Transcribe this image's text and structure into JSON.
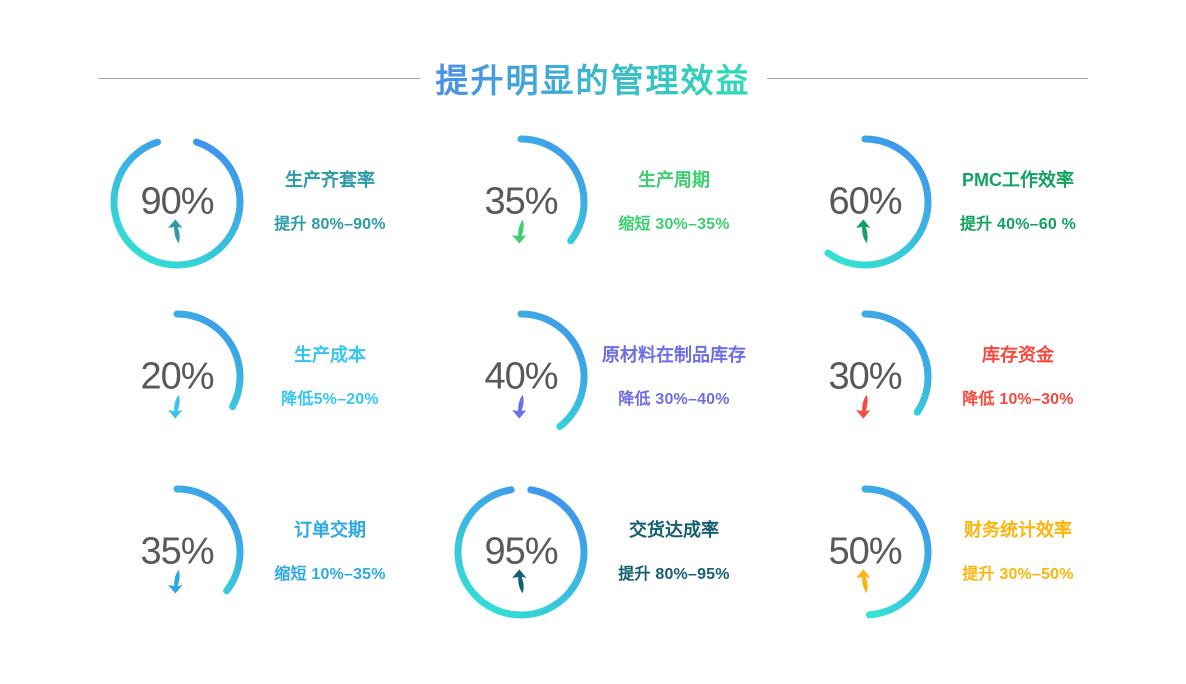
{
  "header": {
    "title": "提升明显的管理效益",
    "title_gradient": [
      "#4A8FE8",
      "#2EDCB4"
    ],
    "divider_color": "#A6A6A6"
  },
  "chart_data": {
    "type": "gauge",
    "layout": "3x3-grid",
    "unit": "%",
    "value_color": "#58595B",
    "arc_gradient": [
      "#3F92ED",
      "#33E1D4"
    ],
    "items": [
      {
        "value": 90,
        "display": "90%",
        "trend": "up",
        "label": "生产齐套率",
        "range_text": "提升 80%–90%",
        "accent": "#2C9BA5",
        "arc_sweep_deg": 324
      },
      {
        "value": 35,
        "display": "35%",
        "trend": "down",
        "label": "生产周期",
        "range_text": "缩短 30%–35%",
        "accent": "#3DCE71",
        "arc_sweep_deg": 128
      },
      {
        "value": 60,
        "display": "60%",
        "trend": "up",
        "label": "PMC工作效率",
        "range_text": "提升 40%–60 %",
        "accent": "#12A161",
        "arc_sweep_deg": 216
      },
      {
        "value": 20,
        "display": "20%",
        "trend": "down",
        "label": "生产成本",
        "range_text": "降低5%–20%",
        "accent": "#37C4F1",
        "arc_sweep_deg": 118
      },
      {
        "value": 40,
        "display": "40%",
        "trend": "down",
        "label": "原材料在制品库存",
        "range_text": "降低 30%–40%",
        "accent": "#6D6EE8",
        "arc_sweep_deg": 142
      },
      {
        "value": 30,
        "display": "30%",
        "trend": "down",
        "label": "库存资金",
        "range_text": "降低 10%–30%",
        "accent": "#F74A3E",
        "arc_sweep_deg": 124
      },
      {
        "value": 35,
        "display": "35%",
        "trend": "down",
        "label": "订单交期",
        "range_text": "缩短 10%–35%",
        "accent": "#2EA8E4",
        "arc_sweep_deg": 128
      },
      {
        "value": 95,
        "display": "95%",
        "trend": "up",
        "label": "交货达成率",
        "range_text": "提升 80%–95%",
        "accent": "#155F70",
        "arc_sweep_deg": 342
      },
      {
        "value": 50,
        "display": "50%",
        "trend": "up",
        "label": "财务统计效率",
        "range_text": "提升 30%–50%",
        "accent": "#FDB50C",
        "arc_sweep_deg": 176
      }
    ]
  }
}
